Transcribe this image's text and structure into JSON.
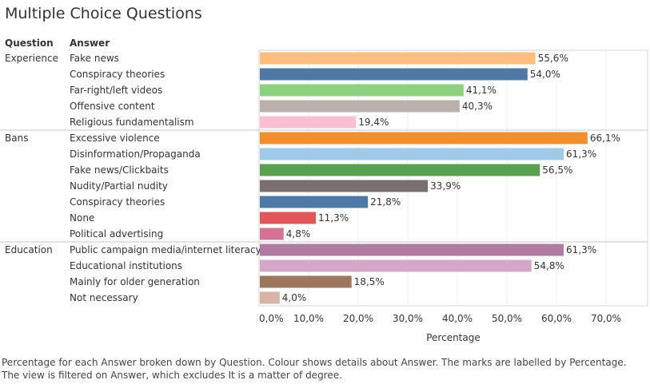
{
  "title": "Multiple Choice Questions",
  "headers": {
    "question": "Question",
    "answer": "Answer"
  },
  "caption": "Percentage for each Answer broken down by Question.  Colour shows details about Answer.  The marks are labelled by Percentage. The view is filtered on Answer, which excludes It is a matter of degree.",
  "chart_data": {
    "type": "bar",
    "orientation": "horizontal",
    "title": "Multiple Choice Questions",
    "xlabel": "Percentage",
    "xlim": [
      0,
      0.7
    ],
    "xticks": [
      "0,0%",
      "10,0%",
      "20,0%",
      "30,0%",
      "40,0%",
      "50,0%",
      "60,0%",
      "70,0%"
    ],
    "groups": [
      {
        "question": "Experience",
        "answers": [
          {
            "label": "Fake news",
            "value": 0.556,
            "text": "55,6%",
            "color": "#ffbe7d"
          },
          {
            "label": "Conspiracy theories",
            "value": 0.54,
            "text": "54,0%",
            "color": "#4e79a7"
          },
          {
            "label": "Far-right/left videos",
            "value": 0.411,
            "text": "41,1%",
            "color": "#8cd17d"
          },
          {
            "label": "Offensive content",
            "value": 0.403,
            "text": "40,3%",
            "color": "#bab0ac"
          },
          {
            "label": "Religious fundamentalism",
            "value": 0.194,
            "text": "19,4%",
            "color": "#fabfd2"
          }
        ]
      },
      {
        "question": "Bans",
        "answers": [
          {
            "label": "Excessive violence",
            "value": 0.661,
            "text": "66,1%",
            "color": "#f28e2b"
          },
          {
            "label": "Disinformation/Propaganda",
            "value": 0.613,
            "text": "61,3%",
            "color": "#a0cbe8"
          },
          {
            "label": "Fake news/Clickbaits",
            "value": 0.565,
            "text": "56,5%",
            "color": "#59a14f"
          },
          {
            "label": "Nudity/Partial nudity",
            "value": 0.339,
            "text": "33,9%",
            "color": "#79706e"
          },
          {
            "label": "Conspiracy theories",
            "value": 0.218,
            "text": "21,8%",
            "color": "#4e79a7"
          },
          {
            "label": "None",
            "value": 0.113,
            "text": "11,3%",
            "color": "#e15759"
          },
          {
            "label": "Political advertising",
            "value": 0.048,
            "text": "4,8%",
            "color": "#d37295"
          }
        ]
      },
      {
        "question": "Education",
        "answers": [
          {
            "label": "Public campaign media/internet literacy",
            "value": 0.613,
            "text": "61,3%",
            "color": "#b07aa1"
          },
          {
            "label": "Educational institutions",
            "value": 0.548,
            "text": "54,8%",
            "color": "#d4a6c8"
          },
          {
            "label": "Mainly for older generation",
            "value": 0.185,
            "text": "18,5%",
            "color": "#9d7660"
          },
          {
            "label": "Not necessary",
            "value": 0.04,
            "text": "4,0%",
            "color": "#d7b5a6"
          }
        ]
      }
    ]
  }
}
